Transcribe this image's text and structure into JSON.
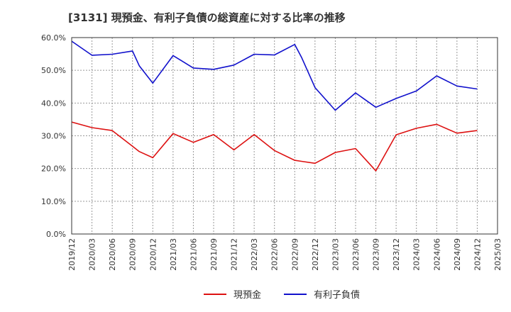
{
  "chart_data": {
    "type": "line",
    "title": "[3131]  現預金、有利子負債の総資産に対する比率の推移",
    "xlabel": "",
    "ylabel": "",
    "ylim": [
      0,
      60
    ],
    "y_ticks": [
      "0.0%",
      "10.0%",
      "20.0%",
      "30.0%",
      "40.0%",
      "50.0%",
      "60.0%"
    ],
    "x_ticks": [
      "2019/12",
      "2020/03",
      "2020/06",
      "2020/09",
      "2020/12",
      "2021/03",
      "2021/06",
      "2021/09",
      "2021/12",
      "2022/03",
      "2022/06",
      "2022/09",
      "2022/12",
      "2023/03",
      "2023/06",
      "2023/09",
      "2023/12",
      "2024/03",
      "2024/06",
      "2024/09",
      "2024/12",
      "2025/03"
    ],
    "x": [
      "2019/12",
      "2020/03",
      "2020/06",
      "2020/09",
      "2020/10",
      "2020/12",
      "2021/03",
      "2021/06",
      "2021/09",
      "2021/12",
      "2022/03",
      "2022/06",
      "2022/09",
      "2022/10",
      "2022/12",
      "2023/03",
      "2023/06",
      "2023/09",
      "2023/12",
      "2024/03",
      "2024/06",
      "2024/09",
      "2024/12"
    ],
    "series": [
      {
        "name": "現預金",
        "color": "#dd1111",
        "values": [
          34.2,
          32.5,
          31.6,
          26.8,
          25.2,
          23.3,
          30.7,
          28.0,
          30.4,
          25.7,
          30.4,
          25.5,
          22.5,
          22.2,
          21.6,
          24.9,
          26.1,
          19.3,
          30.3,
          32.3,
          33.5,
          30.8,
          31.6
        ]
      },
      {
        "name": "有利子負債",
        "color": "#1111cc",
        "values": [
          58.9,
          54.6,
          54.9,
          55.9,
          51.4,
          46.1,
          54.5,
          50.7,
          50.3,
          51.6,
          54.9,
          54.7,
          57.9,
          54.0,
          44.7,
          37.8,
          43.1,
          38.7,
          41.4,
          43.7,
          48.3,
          45.2,
          44.3
        ]
      }
    ],
    "legend_position": "bottom-center"
  }
}
